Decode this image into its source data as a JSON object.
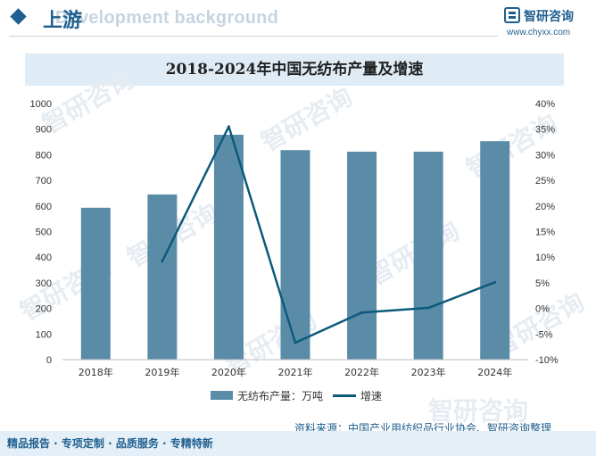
{
  "header": {
    "section_title": "上游",
    "watermark_text": "Development background",
    "brand_name": "智研咨询",
    "brand_url": "www.chyxx.com"
  },
  "watermark_text": "智研咨询",
  "colors": {
    "bar": "#5a8ca8",
    "line": "#0e5a7c",
    "accent": "#1f5f8f",
    "title_band": "#dfecf6"
  },
  "chart_data": {
    "type": "bar+line",
    "title": "2018-2024年中国无纺布产量及增速",
    "categories": [
      "2018年",
      "2019年",
      "2020年",
      "2021年",
      "2022年",
      "2023年",
      "2024年"
    ],
    "series": [
      {
        "name": "无纺布产量：万吨",
        "type": "bar",
        "axis": "left",
        "values": [
          593,
          645,
          878,
          818,
          812,
          812,
          853
        ]
      },
      {
        "name": "增速",
        "type": "line",
        "axis": "right",
        "unit": "%",
        "values": [
          null,
          9.2,
          35.5,
          -6.7,
          -0.8,
          0.1,
          5.1
        ]
      }
    ],
    "y_left": {
      "min": 0,
      "max": 1000,
      "step": 100,
      "ticks": [
        "0",
        "100",
        "200",
        "300",
        "400",
        "500",
        "600",
        "700",
        "800",
        "900",
        "1000"
      ]
    },
    "y_right": {
      "min": -10,
      "max": 40,
      "step": 5,
      "ticks": [
        "-10%",
        "-5%",
        "0%",
        "5%",
        "10%",
        "15%",
        "20%",
        "25%",
        "30%",
        "35%",
        "40%"
      ]
    },
    "legend_position": "bottom"
  },
  "source": "资料来源：中国产业用纺织品行业协会、智研咨询整理",
  "footer": "精品报告 · 专项定制 · 品质服务 · 专精特新"
}
